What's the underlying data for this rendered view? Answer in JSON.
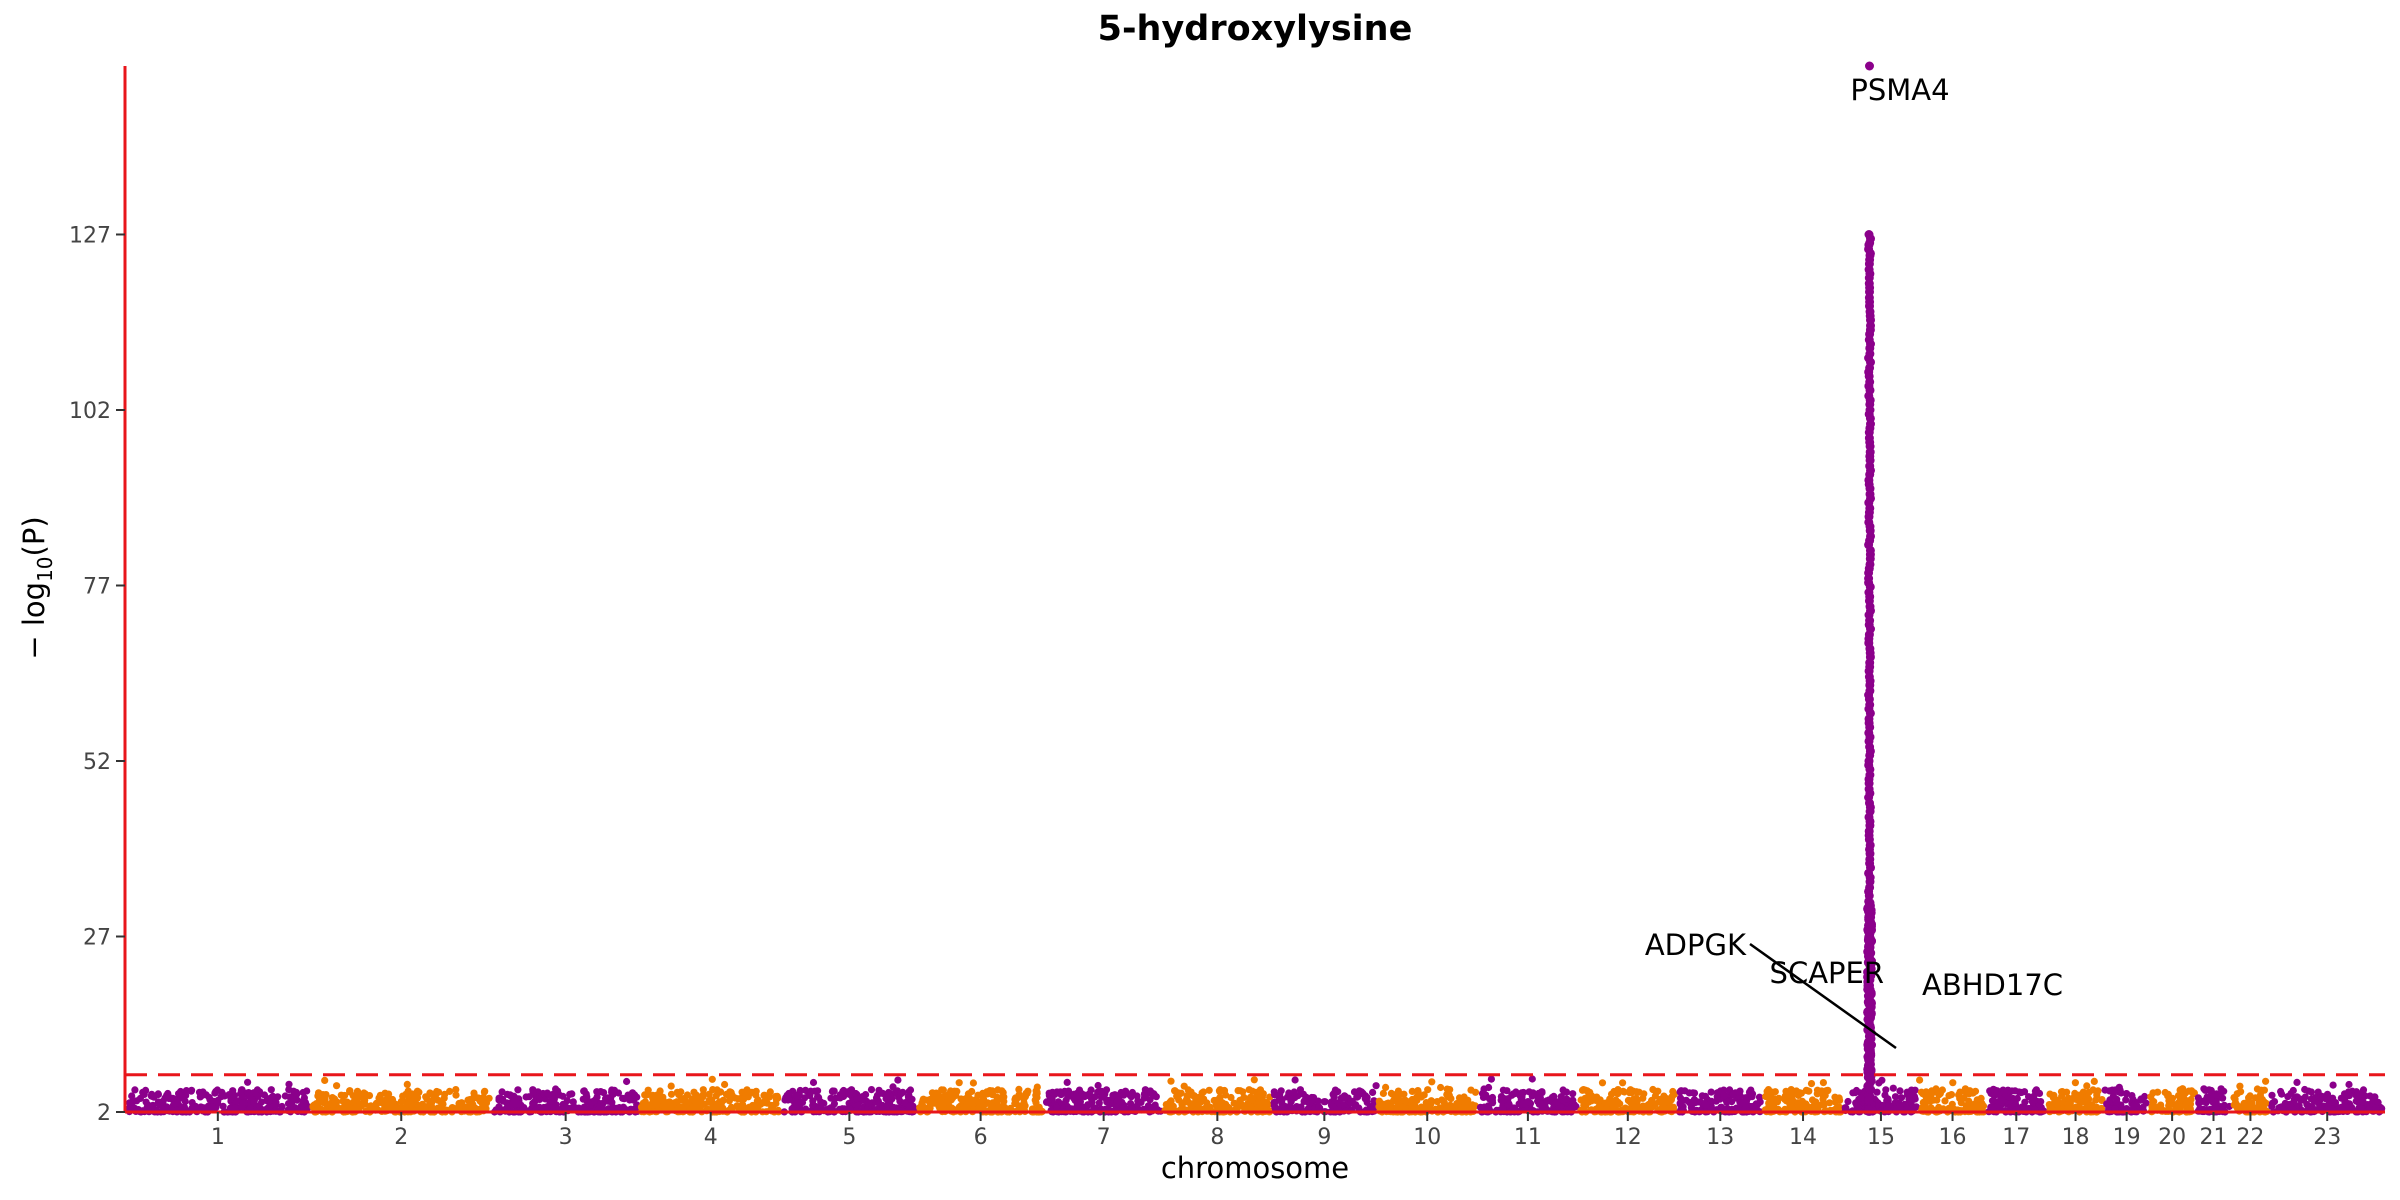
{
  "chart_data": {
    "type": "scatter",
    "subtype": "manhattan",
    "title": "5-hydroxylysine",
    "xlabel": "chromosome",
    "ylabel_parts": {
      "prefix": "− log",
      "subscript": "10",
      "suffix": "(P)"
    },
    "ylim": [
      2,
      151
    ],
    "y_ticks": [
      2,
      27,
      52,
      77,
      102,
      127
    ],
    "threshold": 7.3,
    "colors": {
      "odd": "#8B008B",
      "even": "#F07C00",
      "axis": "#E8161B",
      "threshold": "#E8161B"
    },
    "chromosomes": [
      {
        "label": "1",
        "length": 249
      },
      {
        "label": "2",
        "length": 243
      },
      {
        "label": "3",
        "length": 198
      },
      {
        "label": "4",
        "length": 191
      },
      {
        "label": "5",
        "length": 181
      },
      {
        "label": "6",
        "length": 171
      },
      {
        "label": "7",
        "length": 159
      },
      {
        "label": "8",
        "length": 146
      },
      {
        "label": "9",
        "length": 141
      },
      {
        "label": "10",
        "length": 135
      },
      {
        "label": "11",
        "length": 135
      },
      {
        "label": "12",
        "length": 133
      },
      {
        "label": "13",
        "length": 115
      },
      {
        "label": "14",
        "length": 107
      },
      {
        "label": "15",
        "length": 102
      },
      {
        "label": "16",
        "length": 90
      },
      {
        "label": "17",
        "length": 81
      },
      {
        "label": "18",
        "length": 78
      },
      {
        "label": "19",
        "length": 59
      },
      {
        "label": "20",
        "length": 63
      },
      {
        "label": "21",
        "length": 48
      },
      {
        "label": "22",
        "length": 51
      },
      {
        "label": "23",
        "length": 155
      }
    ],
    "peak": {
      "chromosome": "15",
      "position_fraction": 0.35,
      "max_y": 151,
      "column_values": [
        127,
        125.5,
        124,
        122,
        120,
        118,
        116,
        114,
        112,
        110,
        108,
        106,
        104,
        102,
        100,
        98,
        96,
        94,
        92,
        90,
        88,
        86,
        84,
        82,
        80,
        78,
        76,
        74,
        72,
        70,
        68,
        66,
        64,
        62,
        60,
        58,
        56,
        54,
        52,
        50,
        48,
        46,
        44,
        42,
        40,
        38,
        36,
        34,
        32,
        30,
        28,
        26,
        24,
        22,
        20,
        18,
        16,
        14,
        12,
        10,
        8
      ]
    },
    "annotations": [
      {
        "gene": "PSMA4",
        "chromosome": "15",
        "y": 151
      },
      {
        "gene": "ADPGK",
        "chromosome": "15",
        "y": 10
      },
      {
        "gene": "SCAPER",
        "chromosome": "15",
        "y": 10
      },
      {
        "gene": "ABHD17C",
        "chromosome": "15",
        "y": 10
      }
    ]
  }
}
